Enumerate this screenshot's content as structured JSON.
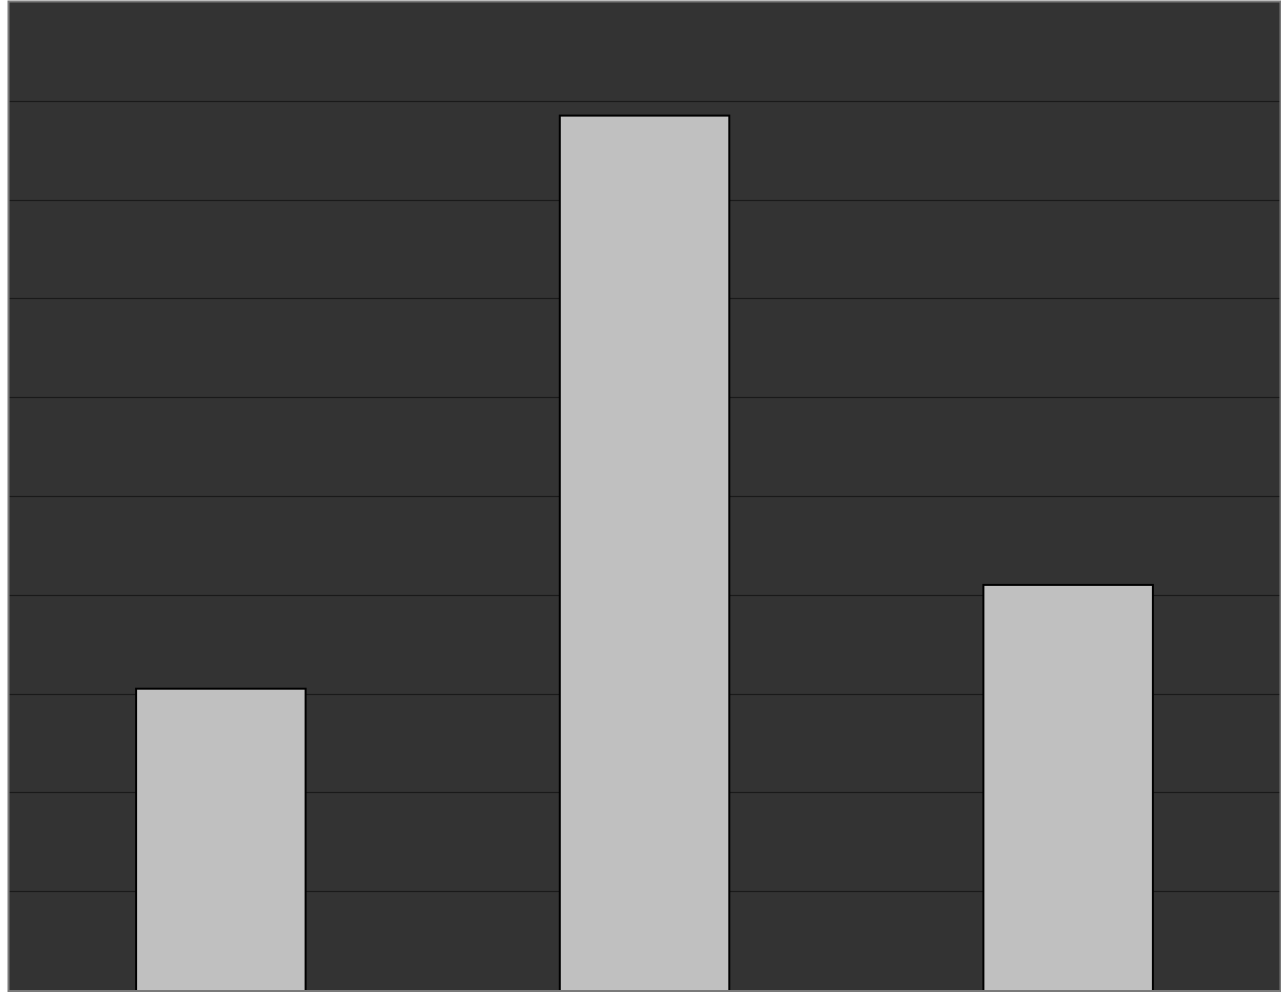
{
  "chart_data": {
    "type": "bar",
    "categories": [
      "",
      "",
      ""
    ],
    "values": [
      3.05,
      8.85,
      4.1
    ],
    "title": "",
    "xlabel": "",
    "ylabel": "",
    "ylim": [
      0,
      10
    ],
    "grid": true,
    "legend": "none",
    "colors": {
      "plot_background": "#333333",
      "bar_fill": "#c0c0c0",
      "bar_stroke": "#000000",
      "gridline": "#1a1a1a",
      "frame": "#7a7a7a",
      "page_background": "#ffffff"
    }
  }
}
